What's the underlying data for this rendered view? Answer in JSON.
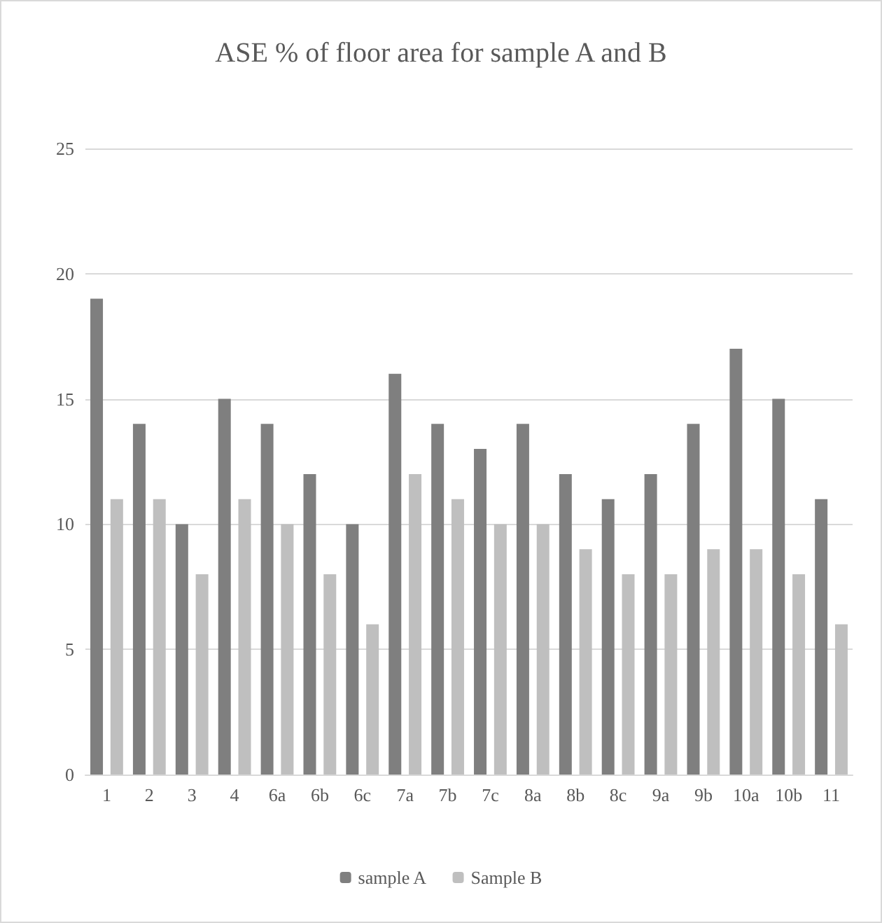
{
  "chart_data": {
    "type": "bar",
    "title": "ASE % of floor area for sample A and B",
    "categories": [
      "1",
      "2",
      "3",
      "4",
      "6a",
      "6b",
      "6c",
      "7a",
      "7b",
      "7c",
      "8a",
      "8b",
      "8c",
      "9a",
      "9b",
      "10a",
      "10b",
      "11"
    ],
    "series": [
      {
        "name": "sample A",
        "color": "#7f7f7f",
        "values": [
          19,
          14,
          10,
          15,
          14,
          12,
          10,
          16,
          14,
          13,
          14,
          12,
          11,
          12,
          14,
          17,
          15,
          11
        ]
      },
      {
        "name": "Sample B",
        "color": "#bfbfbf",
        "values": [
          11,
          11,
          8,
          11,
          10,
          8,
          6,
          12,
          11,
          10,
          10,
          9,
          8,
          8,
          9,
          9,
          8,
          6
        ]
      }
    ],
    "ylim": [
      0,
      25
    ],
    "yticks": [
      0,
      5,
      10,
      15,
      20,
      25
    ],
    "grid": "y",
    "legend": "bottom"
  }
}
